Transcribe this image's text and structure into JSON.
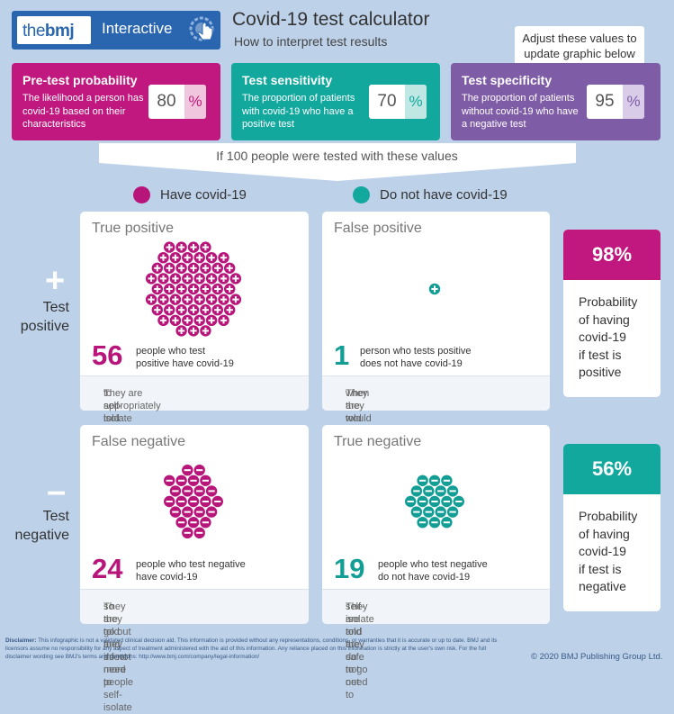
{
  "header": {
    "logo_prefix": "the",
    "logo_bold": "bmj",
    "badge_label": "Interactive",
    "title": "Covid-19 test calculator",
    "subtitle": "How to interpret test results",
    "adjust_note": "Adjust these values to update graphic below"
  },
  "inputs": [
    {
      "title": "Pre-test probability",
      "desc": "The likelihood a person has covid-19 based on their characteristics",
      "value": "80",
      "unit": "%"
    },
    {
      "title": "Test sensitivity",
      "desc": "The proportion of patients with covid-19 who have a positive test",
      "value": "70",
      "unit": "%"
    },
    {
      "title": "Test specificity",
      "desc": "The proportion of patients without covid-19 who have a negative test",
      "value": "95",
      "unit": "%"
    }
  ],
  "population_note": "If 100 people were tested with these values",
  "legend": {
    "have": "Have covid-19",
    "not_have": "Do not have covid-19"
  },
  "colors": {
    "covid": "#b8157a",
    "no_covid": "#139e95",
    "specificity": "#7f5ca6"
  },
  "side": {
    "positive_icon": "+",
    "positive_label_1": "Test",
    "positive_label_2": "positive",
    "negative_icon": "–",
    "negative_label_1": "Test",
    "negative_label_2": "negative"
  },
  "quadrants": {
    "tp": {
      "title": "True positive",
      "count": 56,
      "count_label": "56",
      "desc1": "people who test",
      "desc2": "positive have covid-19",
      "foot1": "They are appropriately told",
      "foot2": "to self-isolate",
      "icon": "plus-circle"
    },
    "fp": {
      "title": "False positive",
      "count": 1,
      "count_label": "1",
      "desc1": "person who tests positive",
      "desc2": "does not have covid-19",
      "foot1": "They are told they need to self-isolate",
      "foot2": "when they would be safe to go out",
      "icon": "plus-circle"
    },
    "fn": {
      "title": "False negative",
      "count": 24,
      "count_label": "24",
      "desc1": "people who test negative",
      "desc2": "have covid-19",
      "foot1": "They are told they do not need to self-isolate",
      "foot2": "so they go out and infect more people",
      "icon": "minus-circle"
    },
    "tn": {
      "title": "True negative",
      "count": 19,
      "count_label": "19",
      "desc1": "people who test negative",
      "desc2": "do not have covid-19",
      "foot1": "They are told they do not need to",
      "foot2": "self-isolate and are safe to go out",
      "icon": "minus-circle"
    }
  },
  "probabilities": {
    "positive": {
      "value": "98%",
      "l1": "Probability",
      "l2": "of having",
      "l3": "covid-19",
      "l4": "if test is",
      "l5": "positive"
    },
    "negative": {
      "value": "56%",
      "l1": "Probability",
      "l2": "of having",
      "l3": "covid-19",
      "l4": "if test is",
      "l5": "negative"
    }
  },
  "disclaimer": {
    "label": "Disclaimer:",
    "text": "This infographic is not a validated clinical decision aid. This information is provided without any representations, conditions, or warranties that it is accurate or up to date. BMJ and its licensors assume no responsibility for any aspect of treatment administered with the aid of this information. Any reliance placed on this information is strictly at the user's own risk. For the full disclaimer wording see BMJ's terms and conditions: http://www.bmj.com/company/legal-information/"
  },
  "copyright": "© 2020 BMJ Publishing Group Ltd."
}
